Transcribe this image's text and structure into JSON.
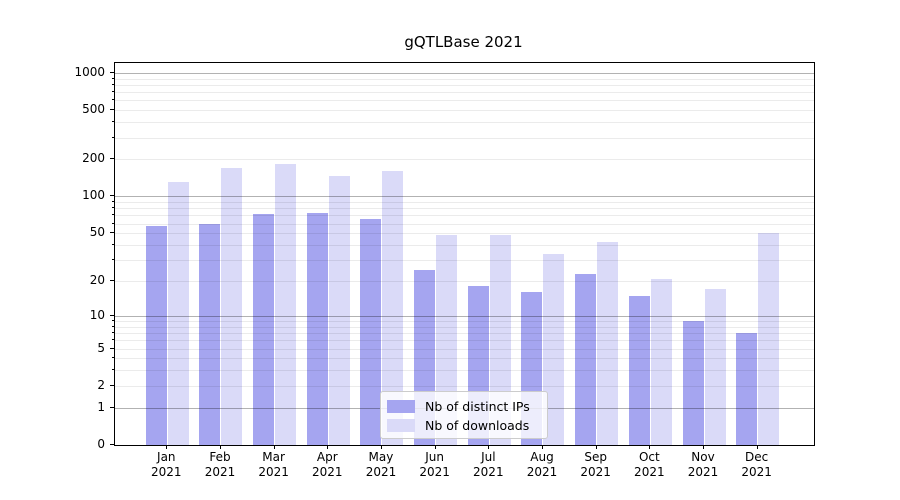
{
  "chart_data": {
    "type": "bar",
    "title": "gQTLBase 2021",
    "categories": [
      "Jan",
      "Feb",
      "Mar",
      "Apr",
      "May",
      "Jun",
      "Jul",
      "Aug",
      "Sep",
      "Oct",
      "Nov",
      "Dec"
    ],
    "year_label": "2021",
    "series": [
      {
        "name": "Nb of distinct IPs",
        "color": "#a5a5f0",
        "values": [
          57,
          60,
          72,
          74,
          65,
          25,
          18,
          16,
          23,
          15,
          9,
          7
        ]
      },
      {
        "name": "Nb of downloads",
        "color": "#dadaf8",
        "values": [
          130,
          170,
          185,
          147,
          162,
          48,
          48,
          34,
          42,
          21,
          17,
          50
        ]
      }
    ],
    "xlabel": "",
    "ylabel": "",
    "yscale": "log1p",
    "ylim": [
      0,
      1200
    ],
    "yticks": [
      0,
      1,
      2,
      5,
      10,
      20,
      50,
      100,
      200,
      500,
      1000
    ],
    "major_gridlines_at": [
      1,
      10,
      100,
      1000
    ],
    "minor_gridlines_at": [
      2,
      3,
      4,
      5,
      6,
      7,
      8,
      9,
      20,
      30,
      40,
      50,
      60,
      70,
      80,
      90,
      200,
      300,
      400,
      500,
      600,
      700,
      800,
      900
    ],
    "grid": "horizontal",
    "legend_position": "lower center"
  }
}
